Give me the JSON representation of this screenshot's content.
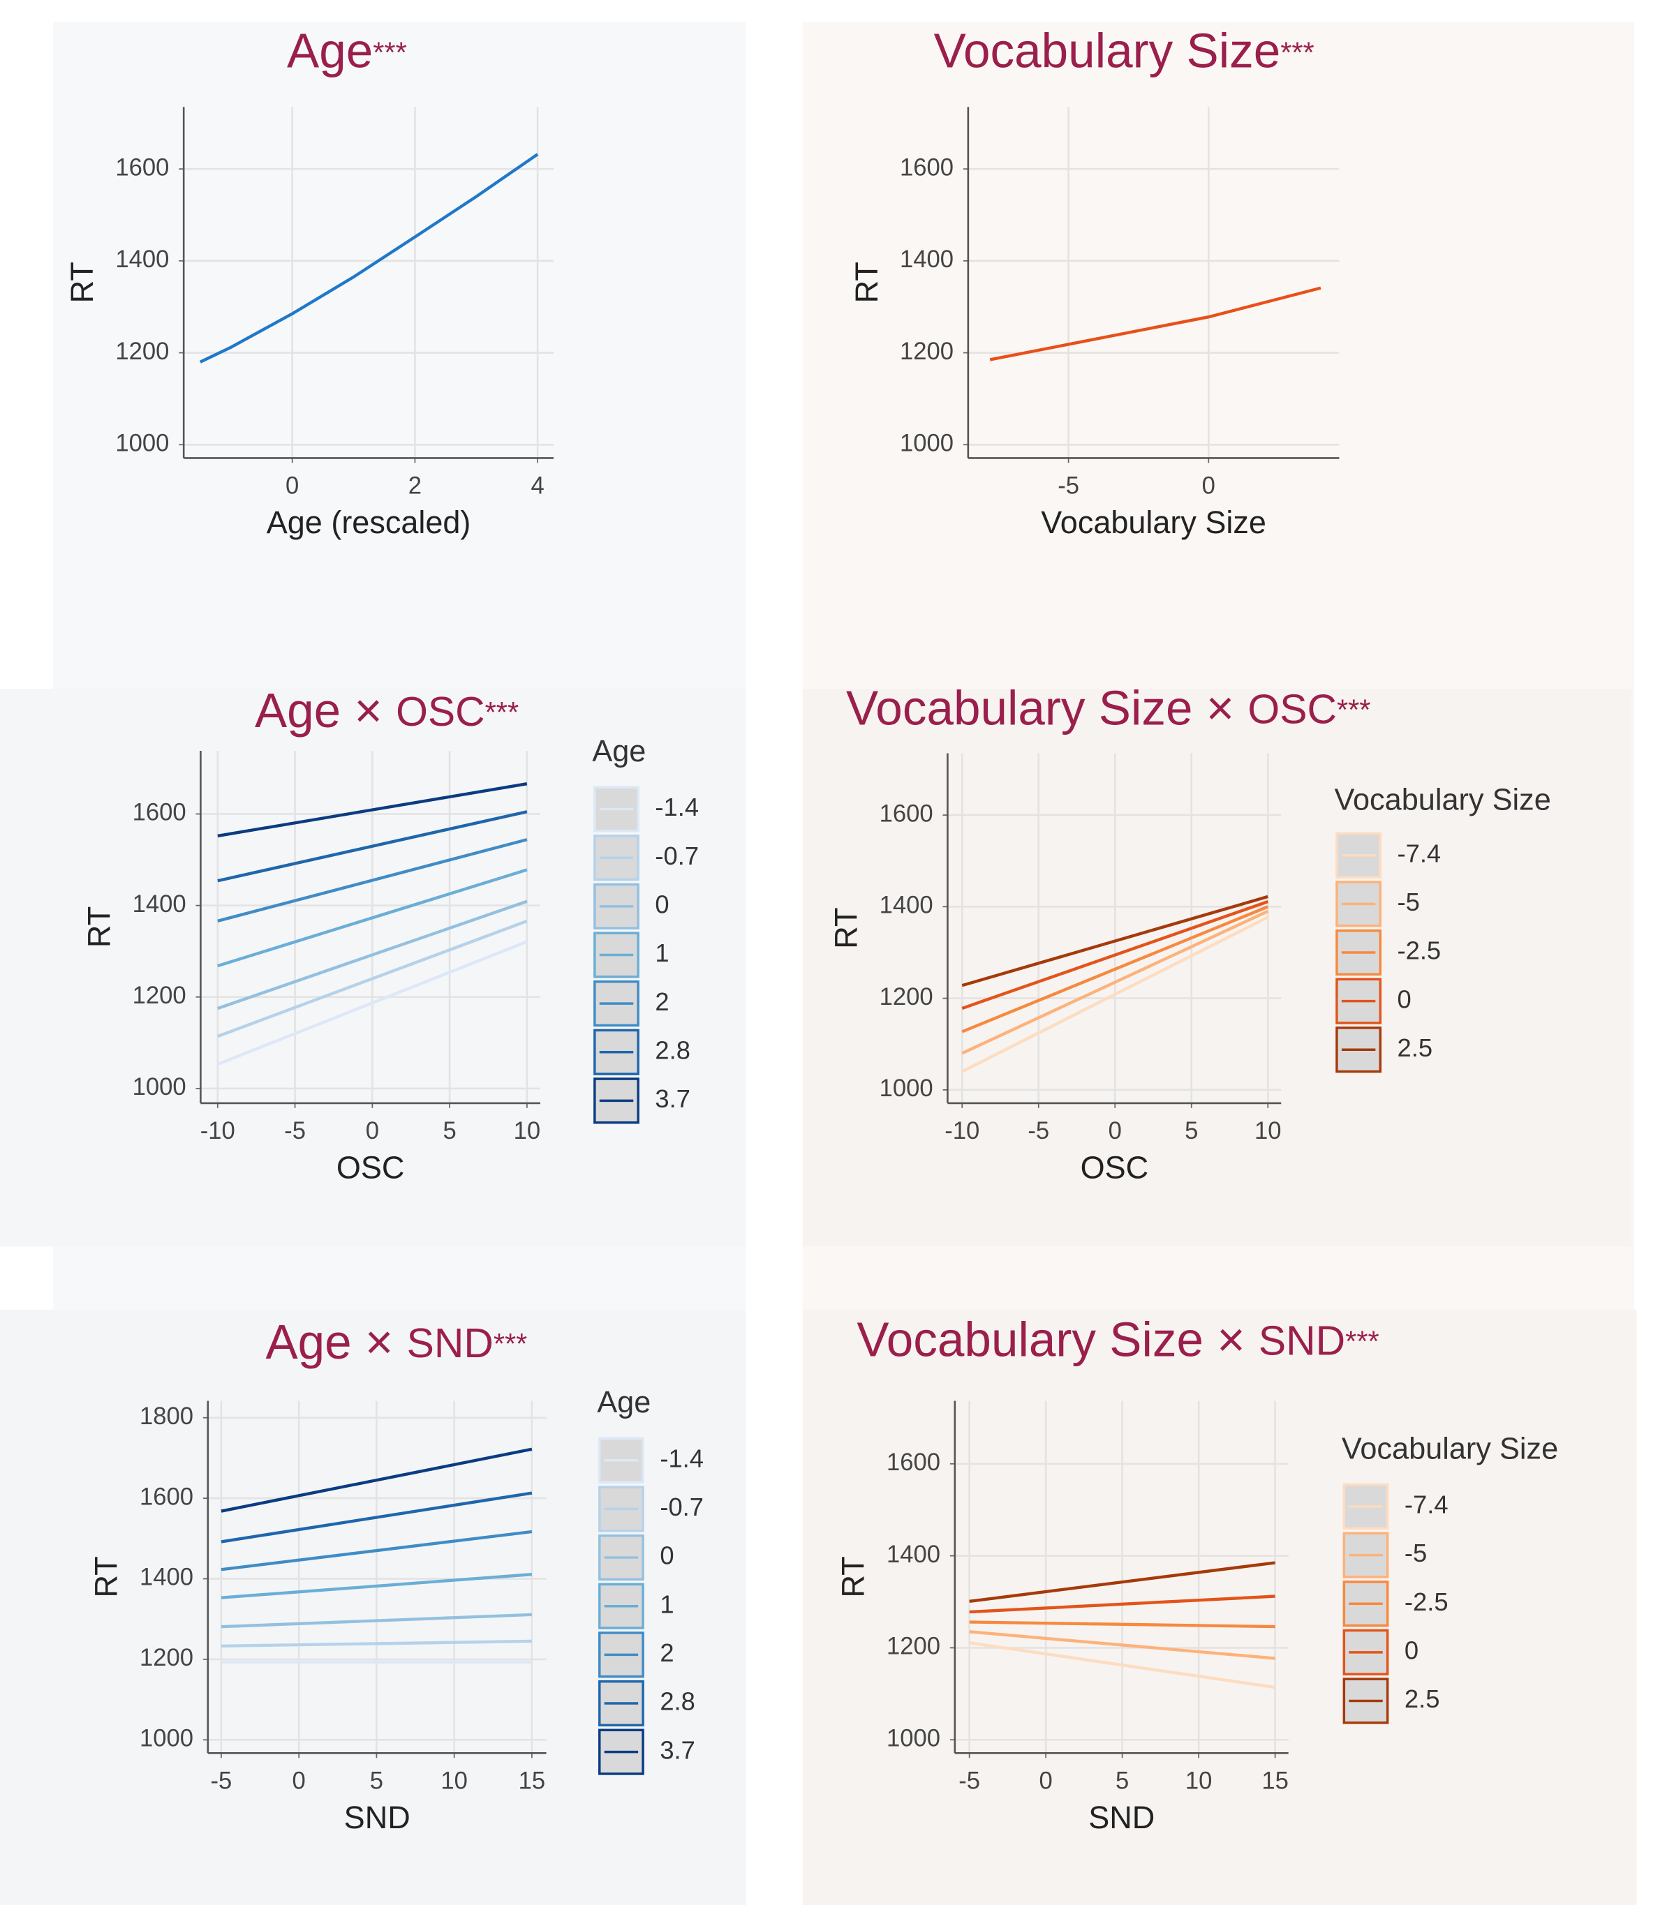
{
  "chart_data": [
    {
      "type": "line",
      "title": [
        "Age",
        "***"
      ],
      "xlabel": "Age (rescaled)",
      "ylabel": "RT",
      "x": [
        -1.5,
        -1,
        0,
        1,
        2,
        3,
        4
      ],
      "xlim": [
        -1.77,
        4.26
      ],
      "xticks": [
        0,
        2,
        4
      ],
      "ylim": [
        971,
        1735
      ],
      "yticks": [
        1000,
        1200,
        1400,
        1600
      ],
      "grid": true,
      "series": [
        {
          "name": null,
          "color": "#1f78c8",
          "values": [
            1180,
            1212,
            1285,
            1365,
            1452,
            1540,
            1632
          ]
        }
      ]
    },
    {
      "type": "line",
      "title": [
        "Vocabulary Size",
        "***"
      ],
      "xlabel": "Vocabulary Size",
      "ylabel": "RT",
      "x": [
        -7.8,
        0,
        4
      ],
      "xlim": [
        -8.58,
        4.66
      ],
      "xticks": [
        -5,
        0
      ],
      "ylim": [
        971,
        1735
      ],
      "yticks": [
        1000,
        1200,
        1400,
        1600
      ],
      "grid": true,
      "series": [
        {
          "name": null,
          "color": "#e8501a",
          "values": [
            1185,
            1278,
            1341
          ]
        }
      ]
    },
    {
      "type": "line",
      "title": [
        "Age × ",
        "OSC",
        "***"
      ],
      "xlabel": "OSC",
      "ylabel": "RT",
      "legend_title": "Age",
      "x": [
        -10,
        10
      ],
      "xlim": [
        -11.1,
        10.86
      ],
      "xticks": [
        -10,
        -5,
        0,
        5,
        10
      ],
      "ylim": [
        968,
        1738
      ],
      "yticks": [
        1000,
        1200,
        1400,
        1600
      ],
      "grid": true,
      "series": [
        {
          "name": "-1.4",
          "color": "#dde8f6",
          "values": [
            1053,
            1321
          ]
        },
        {
          "name": "-0.7",
          "color": "#b5d2ea",
          "values": [
            1114,
            1366
          ]
        },
        {
          "name": "0",
          "color": "#94c0e0",
          "values": [
            1175,
            1409
          ]
        },
        {
          "name": "1",
          "color": "#6aaed6",
          "values": [
            1268,
            1478
          ]
        },
        {
          "name": "2",
          "color": "#3f8cc6",
          "values": [
            1366,
            1544
          ]
        },
        {
          "name": "2.8",
          "color": "#1f66ac",
          "values": [
            1454,
            1605
          ]
        },
        {
          "name": "3.7",
          "color": "#0b3c82",
          "values": [
            1552,
            1666
          ]
        }
      ]
    },
    {
      "type": "line",
      "title": [
        "Vocabulary Size × ",
        "OSC",
        "***"
      ],
      "xlabel": "OSC",
      "ylabel": "RT",
      "legend_title": "Vocabulary Size",
      "x": [
        -10,
        10
      ],
      "xlim": [
        -10.95,
        10.87
      ],
      "xticks": [
        -10,
        -5,
        0,
        5,
        10
      ],
      "ylim": [
        971,
        1735
      ],
      "yticks": [
        1000,
        1200,
        1400,
        1600
      ],
      "grid": true,
      "series": [
        {
          "name": "-7.4",
          "color": "#fddcc0",
          "values": [
            1040,
            1377
          ]
        },
        {
          "name": "-5",
          "color": "#fdb27a",
          "values": [
            1080,
            1390
          ]
        },
        {
          "name": "-2.5",
          "color": "#f7893f",
          "values": [
            1127,
            1400
          ]
        },
        {
          "name": "0",
          "color": "#e2541a",
          "values": [
            1178,
            1411
          ]
        },
        {
          "name": "2.5",
          "color": "#a53a0b",
          "values": [
            1228,
            1422
          ]
        }
      ]
    },
    {
      "type": "line",
      "title": [
        "Age × ",
        "SND",
        "***"
      ],
      "xlabel": "SND",
      "ylabel": "RT",
      "legend_title": "Age",
      "x": [
        -5,
        15
      ],
      "xlim": [
        -5.86,
        15.93
      ],
      "xticks": [
        -5,
        0,
        5,
        10,
        15
      ],
      "ylim": [
        967,
        1842
      ],
      "yticks": [
        1000,
        1200,
        1400,
        1600,
        1800
      ],
      "grid": true,
      "series": [
        {
          "name": "-1.4",
          "color": "#dde8f6",
          "values": [
            1193,
            1193
          ]
        },
        {
          "name": "-0.7",
          "color": "#b5d2ea",
          "values": [
            1233,
            1245
          ]
        },
        {
          "name": "0",
          "color": "#94c0e0",
          "values": [
            1281,
            1311
          ]
        },
        {
          "name": "1",
          "color": "#6aaed6",
          "values": [
            1353,
            1411
          ]
        },
        {
          "name": "2",
          "color": "#3f8cc6",
          "values": [
            1423,
            1517
          ]
        },
        {
          "name": "2.8",
          "color": "#1f66ac",
          "values": [
            1492,
            1613
          ]
        },
        {
          "name": "3.7",
          "color": "#0b3c82",
          "values": [
            1568,
            1722
          ]
        }
      ]
    },
    {
      "type": "line",
      "title": [
        "Vocabulary Size × ",
        "SND",
        "***"
      ],
      "xlabel": "SND",
      "ylabel": "RT",
      "legend_title": "Vocabulary Size",
      "x": [
        -5,
        15
      ],
      "xlim": [
        -5.95,
        15.87
      ],
      "xticks": [
        -5,
        0,
        5,
        10,
        15
      ],
      "ylim": [
        971,
        1737
      ],
      "yticks": [
        1000,
        1200,
        1400,
        1600
      ],
      "grid": true,
      "series": [
        {
          "name": "-7.4",
          "color": "#fddcc0",
          "values": [
            1211,
            1114
          ]
        },
        {
          "name": "-5",
          "color": "#fdb27a",
          "values": [
            1235,
            1177
          ]
        },
        {
          "name": "-2.5",
          "color": "#f7893f",
          "values": [
            1256,
            1246
          ]
        },
        {
          "name": "0",
          "color": "#e2541a",
          "values": [
            1278,
            1312
          ]
        },
        {
          "name": "2.5",
          "color": "#a53a0b",
          "values": [
            1301,
            1385
          ]
        }
      ]
    }
  ]
}
